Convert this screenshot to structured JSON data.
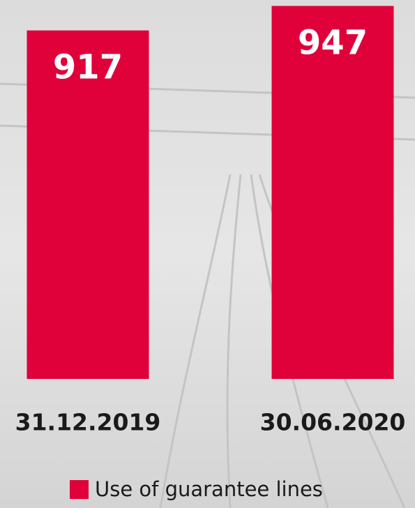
{
  "chart_data": {
    "type": "bar",
    "categories": [
      "31.12.2019",
      "30.06.2020"
    ],
    "series": [
      {
        "name": "Use of guarantee lines",
        "color": "#e0003a",
        "values": [
          917,
          947
        ]
      }
    ],
    "ylim": [
      490,
      950
    ]
  }
}
